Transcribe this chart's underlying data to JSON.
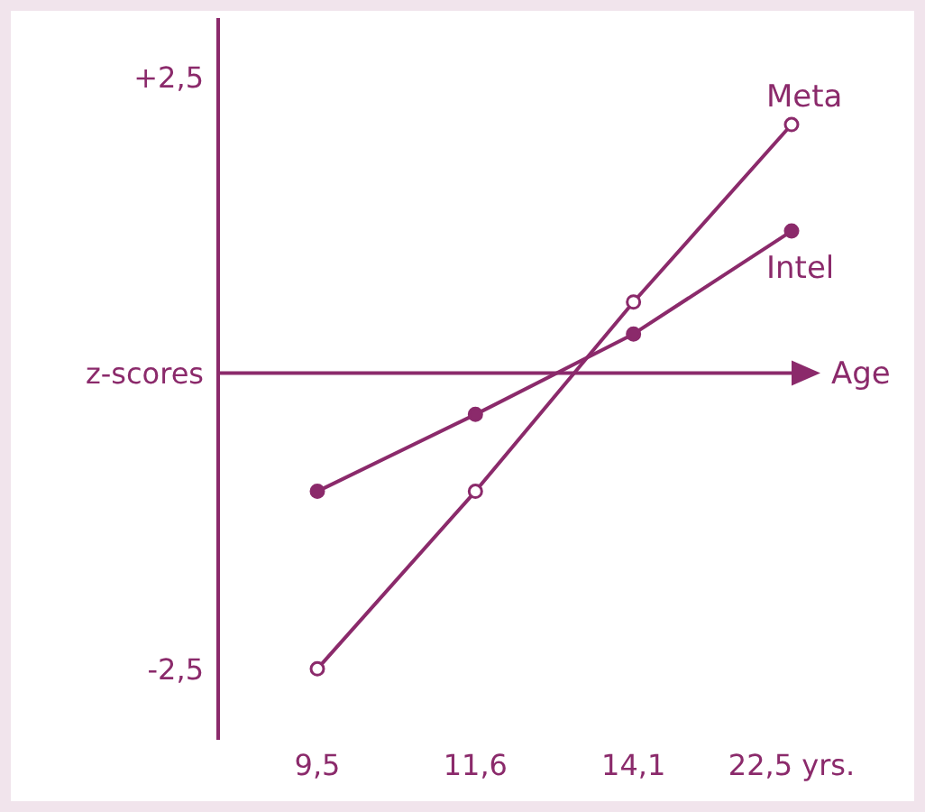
{
  "chart_data": {
    "type": "line",
    "categories": [
      "9,5",
      "11,6",
      "14,1",
      "22,5 yrs."
    ],
    "series": [
      {
        "name": "Meta",
        "color": "#8b2a6b",
        "values": [
          -2.5,
          -1.0,
          0.6,
          2.1
        ]
      },
      {
        "name": "Intel",
        "color": "#8b2a6b",
        "values": [
          -1.0,
          -0.35,
          0.33,
          1.2
        ]
      }
    ],
    "ylim": [
      -3.1,
      3.0
    ],
    "yticks": [
      {
        "value": 2.5,
        "label": "+2,5"
      },
      {
        "value": 0,
        "label": "z-scores"
      },
      {
        "value": -2.5,
        "label": "-2,5"
      }
    ],
    "ref_lines": [
      {
        "axis": "y",
        "value": 0,
        "label": "Age",
        "color": "#8b2a6b"
      }
    ],
    "marker": "circle",
    "grid": false,
    "legend": false
  }
}
